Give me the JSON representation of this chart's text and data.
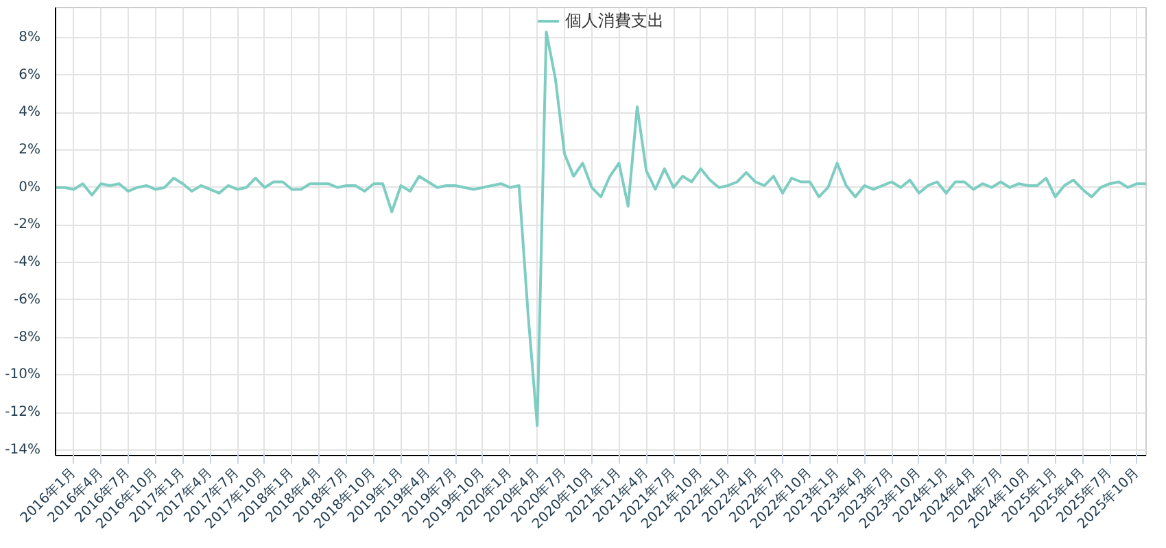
{
  "chart_data": {
    "type": "line",
    "categories": [
      null,
      null,
      "2016年1月",
      null,
      null,
      "2016年4月",
      null,
      null,
      "2016年7月",
      null,
      null,
      "2016年10月",
      null,
      null,
      "2017年1月",
      null,
      null,
      "2017年4月",
      null,
      null,
      "2017年7月",
      null,
      null,
      "2017年10月",
      null,
      null,
      "2018年1月",
      null,
      null,
      "2018年4月",
      null,
      null,
      "2018年7月",
      null,
      null,
      "2018年10月",
      null,
      null,
      "2019年1月",
      null,
      null,
      "2019年4月",
      null,
      null,
      "2019年7月",
      null,
      null,
      "2019年10月",
      null,
      null,
      "2020年1月",
      null,
      null,
      "2020年4月",
      null,
      null,
      "2020年7月",
      null,
      null,
      "2020年10月",
      null,
      null,
      "2021年1月",
      null,
      null,
      "2021年4月",
      null,
      null,
      "2021年7月",
      null,
      null,
      "2021年10月",
      null,
      null,
      "2022年1月",
      null,
      null,
      "2022年4月",
      null,
      null,
      "2022年7月",
      null,
      null,
      "2022年10月",
      null,
      null,
      "2023年1月",
      null,
      null,
      "2023年4月",
      null,
      null,
      "2023年7月",
      null,
      null,
      "2023年10月",
      null,
      null,
      "2024年1月",
      null,
      null,
      "2024年4月",
      null,
      null,
      "2024年7月",
      null,
      null,
      "2024年10月",
      null,
      null,
      "2025年1月",
      null,
      null,
      "2025年4月",
      null,
      null,
      "2025年7月",
      null,
      null,
      "2025年10月",
      null
    ],
    "series": [
      {
        "name": "個人消費支出",
        "color": "#7ecdc2",
        "values": [
          0.0,
          0.0,
          -0.1,
          0.2,
          -0.4,
          0.2,
          0.1,
          0.2,
          -0.2,
          0.0,
          0.1,
          -0.1,
          0.0,
          0.5,
          0.2,
          -0.2,
          0.1,
          -0.1,
          -0.3,
          0.1,
          -0.1,
          0.0,
          0.5,
          0.0,
          0.3,
          0.3,
          -0.1,
          -0.1,
          0.2,
          0.2,
          0.2,
          0.0,
          0.1,
          0.1,
          -0.2,
          0.2,
          0.2,
          -1.3,
          0.1,
          -0.2,
          0.6,
          0.3,
          0.0,
          0.1,
          0.1,
          0.0,
          -0.1,
          0.0,
          0.1,
          0.2,
          0.0,
          0.1,
          -6.8,
          -12.7,
          8.3,
          5.8,
          1.8,
          0.6,
          1.3,
          0.0,
          -0.5,
          0.6,
          1.3,
          -1.0,
          4.3,
          0.9,
          -0.1,
          1.0,
          0.0,
          0.6,
          0.3,
          1.0,
          0.4,
          0.0,
          0.1,
          0.3,
          0.8,
          0.3,
          0.1,
          0.6,
          -0.3,
          0.5,
          0.3,
          0.3,
          -0.5,
          0.0,
          1.3,
          0.1,
          -0.5,
          0.1,
          -0.1,
          0.1,
          0.3,
          0.0,
          0.4,
          -0.3,
          0.1,
          0.3,
          -0.3,
          0.3,
          0.3,
          -0.1,
          0.2,
          0.0,
          0.3,
          0.0,
          0.2,
          0.1,
          0.1,
          0.5,
          -0.5,
          0.1,
          0.4,
          -0.1,
          -0.5,
          0.0,
          0.2,
          0.3,
          0.0,
          0.2,
          0.2
        ]
      }
    ],
    "ylim": [
      -14.3,
      9.6
    ],
    "yticks": [
      {
        "value": -14,
        "label": "-14%"
      },
      {
        "value": -12,
        "label": "-12%"
      },
      {
        "value": -10,
        "label": "-10%"
      },
      {
        "value": -8,
        "label": "-8%"
      },
      {
        "value": -6,
        "label": "-6%"
      },
      {
        "value": -4,
        "label": "-4%"
      },
      {
        "value": -2,
        "label": "-2%"
      },
      {
        "value": 0,
        "label": "0%"
      },
      {
        "value": 2,
        "label": "2%"
      },
      {
        "value": 4,
        "label": "4%"
      },
      {
        "value": 6,
        "label": "6%"
      },
      {
        "value": 8,
        "label": "8%"
      }
    ],
    "grid": true,
    "legend": "top",
    "marker": "none",
    "line_style": "solid"
  }
}
